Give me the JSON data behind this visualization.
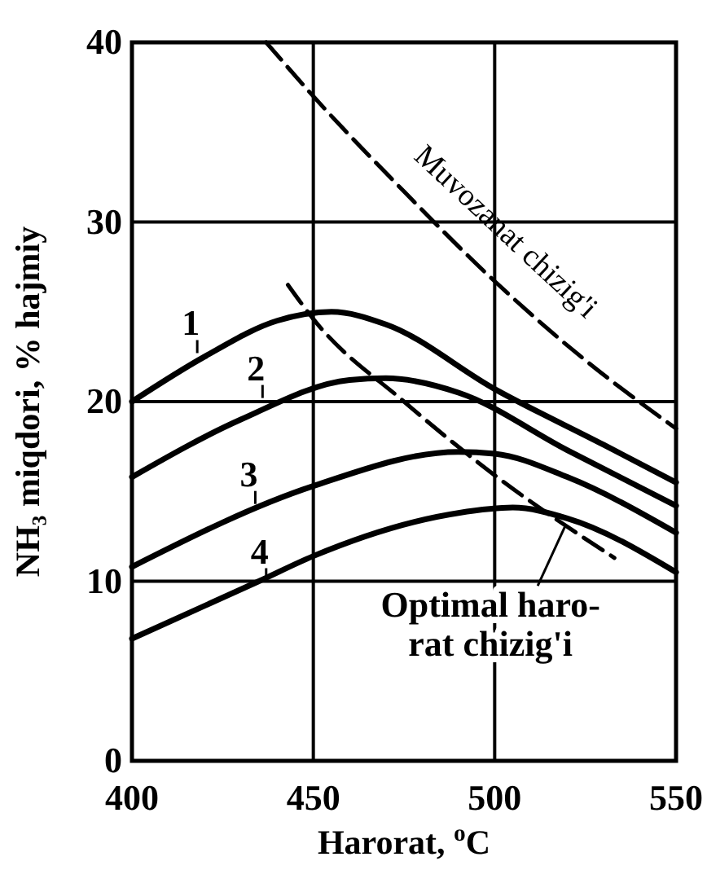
{
  "chart_data": {
    "type": "line",
    "xlabel": "Harorat, $^{o}$C",
    "ylabel": "NH₃ miqdori, % hajmiy",
    "xlim": [
      400,
      550
    ],
    "xticks": [
      400,
      450,
      500,
      550
    ],
    "ylim": [
      0,
      40
    ],
    "yticks": [
      0,
      10,
      20,
      30,
      40
    ],
    "grid": true,
    "marker": "none",
    "series": [
      {
        "color": "#000000",
        "line_style": "solid",
        "x": [
          400,
          420,
          440,
          455,
          470,
          500,
          530,
          550
        ],
        "values": [
          20,
          22.5,
          24.5,
          25,
          24.3,
          20.7,
          17.6,
          15.5
        ]
      },
      {
        "color": "#000000",
        "line_style": "solid",
        "x": [
          400,
          430,
          460,
          470,
          490,
          520,
          550
        ],
        "values": [
          15.8,
          19,
          21.2,
          21.3,
          20.5,
          17.3,
          14.2
        ]
      },
      {
        "color": "#000000",
        "line_style": "solid",
        "x": [
          400,
          450,
          490,
          500,
          520,
          550
        ],
        "values": [
          10.8,
          15.3,
          17.2,
          17.1,
          15.8,
          12.7
        ]
      },
      {
        "color": "#000000",
        "line_style": "solid",
        "x": [
          400,
          435,
          450,
          490,
          505,
          520,
          550
        ],
        "values": [
          6.8,
          10,
          11.4,
          13.8,
          14.1,
          13.5,
          10.5
        ]
      },
      {
        "color": "#000000",
        "line_style": "dashed",
        "x": [
          437,
          450,
          475,
          500,
          525,
          550
        ],
        "values": [
          40,
          37,
          31.7,
          26.7,
          22.3,
          18.5
        ]
      },
      {
        "color": "#000000",
        "line_style": "dashed",
        "x": [
          443,
          450,
          475,
          500,
          533
        ],
        "values": [
          26.5,
          24.6,
          20,
          15.9,
          11.3
        ]
      }
    ],
    "annotations": [
      {
        "text": "1",
        "x": 418,
        "y": 22.7
      },
      {
        "text": "2",
        "x": 436,
        "y": 20.2
      },
      {
        "text": "3",
        "x": 434,
        "y": 14.3
      },
      {
        "text": "4",
        "x": 437,
        "y": 10
      },
      {
        "text": "Muvozanat chizig'i",
        "x": 495,
        "y": 27.8
      },
      {
        "text": "Optimal haro-\nrat chizig'i",
        "x": 519.5,
        "y": 13.1
      }
    ]
  }
}
